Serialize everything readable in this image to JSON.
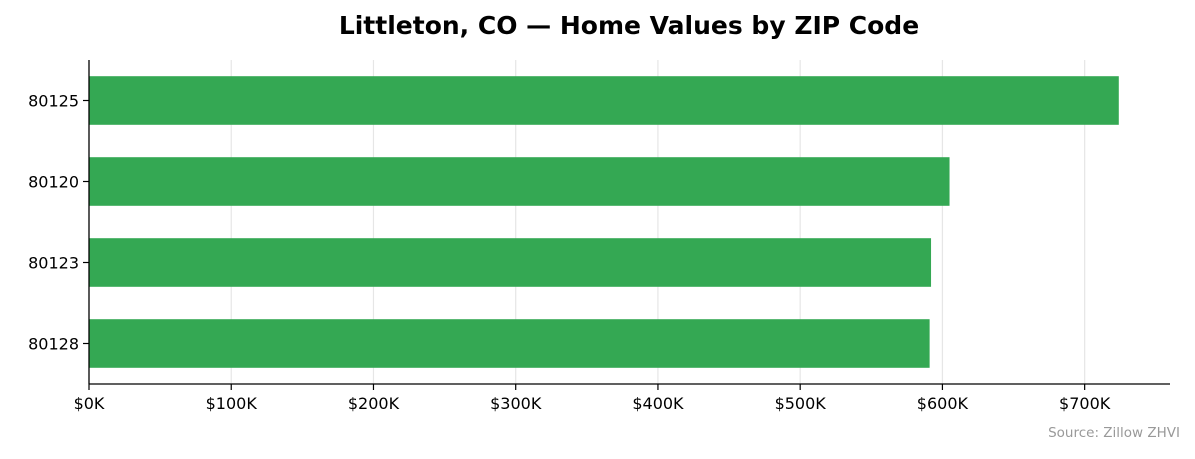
{
  "chart_data": {
    "type": "bar",
    "orientation": "horizontal",
    "title": "Littleton, CO — Home Values by ZIP Code",
    "categories": [
      "80125",
      "80120",
      "80123",
      "80128"
    ],
    "values": [
      724000,
      605000,
      592000,
      591000
    ],
    "xlim": [
      0,
      760000
    ],
    "x_ticks": [
      0,
      100000,
      200000,
      300000,
      400000,
      500000,
      600000,
      700000
    ],
    "x_tick_labels": [
      "$0K",
      "$100K",
      "$200K",
      "$300K",
      "$400K",
      "$500K",
      "$600K",
      "$700K"
    ],
    "xlabel": "",
    "ylabel": "",
    "grid": "vertical",
    "legend": "none",
    "bar_color": "#34a853",
    "annotation": "Source: Zillow ZHVI"
  }
}
